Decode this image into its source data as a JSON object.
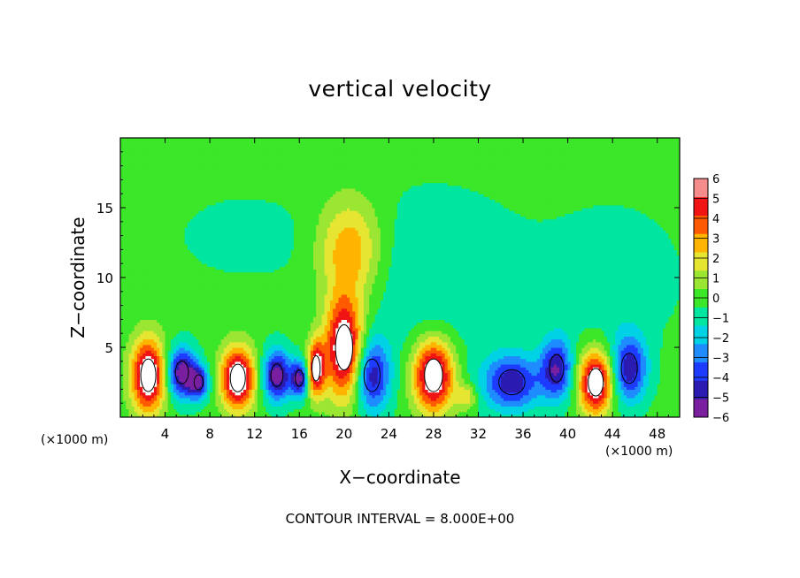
{
  "chart_data": {
    "type": "heatmap",
    "title": "vertical velocity",
    "xlabel": "X−coordinate",
    "ylabel": "Z−coordinate",
    "x_unit": "(×1000 m)",
    "footer": "CONTOUR INTERVAL = 8.000E+00",
    "xlim": [
      0,
      50
    ],
    "ylim": [
      0,
      20
    ],
    "x_ticks": [
      4,
      8,
      12,
      16,
      20,
      24,
      28,
      32,
      36,
      40,
      44,
      48
    ],
    "y_ticks": [
      5,
      10,
      15
    ],
    "colorbar": {
      "range": [
        -6,
        6
      ],
      "tick_values": [
        6,
        5,
        4,
        3,
        2,
        1,
        0,
        -1,
        -2,
        -3,
        -4,
        -5,
        -6
      ],
      "tick_labels": [
        "6",
        "5",
        "4",
        "3",
        "2",
        "1",
        "0",
        "−1",
        "−2",
        "−3",
        "−4",
        "−5",
        "−6"
      ],
      "colors": [
        "#7a1fa0",
        "#2b1bb0",
        "#1e3cff",
        "#1e8cff",
        "#00d2e6",
        "#00e6a0",
        "#3ce628",
        "#9be632",
        "#e6e632",
        "#ffb400",
        "#ff5a00",
        "#f01414",
        "#f58c8c"
      ]
    },
    "features": [
      {
        "x": 2.5,
        "z": 3.0,
        "value": 6.0,
        "rx": 1.5,
        "rz": 2.6
      },
      {
        "x": 5.5,
        "z": 3.2,
        "value": -5.0,
        "rx": 1.3,
        "rz": 1.8
      },
      {
        "x": 7.0,
        "z": 2.5,
        "value": -4.0,
        "rx": 0.9,
        "rz": 1.2
      },
      {
        "x": 10.5,
        "z": 2.8,
        "value": 6.0,
        "rx": 1.5,
        "rz": 2.2
      },
      {
        "x": 14.0,
        "z": 3.0,
        "value": -5.0,
        "rx": 1.2,
        "rz": 1.8
      },
      {
        "x": 16.0,
        "z": 2.8,
        "value": -4.5,
        "rx": 0.8,
        "rz": 1.3
      },
      {
        "x": 17.5,
        "z": 3.5,
        "value": 5.0,
        "rx": 0.8,
        "rz": 2.0
      },
      {
        "x": 20.0,
        "z": 5.0,
        "value": 6.0,
        "rx": 1.7,
        "rz": 3.6
      },
      {
        "x": 20.5,
        "z": 12.0,
        "value": 3.0,
        "rx": 2.8,
        "rz": 3.6
      },
      {
        "x": 22.5,
        "z": 3.0,
        "value": -4.0,
        "rx": 1.6,
        "rz": 2.6
      },
      {
        "x": 28.0,
        "z": 3.0,
        "value": 6.0,
        "rx": 1.8,
        "rz": 2.6
      },
      {
        "x": 31.0,
        "z": 1.5,
        "value": 2.0,
        "rx": 0.9,
        "rz": 0.9
      },
      {
        "x": 35.0,
        "z": 2.5,
        "value": -4.0,
        "rx": 2.6,
        "rz": 2.0
      },
      {
        "x": 39.0,
        "z": 3.5,
        "value": -4.0,
        "rx": 1.4,
        "rz": 2.2
      },
      {
        "x": 42.5,
        "z": 2.5,
        "value": 6.0,
        "rx": 1.5,
        "rz": 2.2
      },
      {
        "x": 45.5,
        "z": 3.5,
        "value": -4.0,
        "rx": 1.6,
        "rz": 2.4
      },
      {
        "x": 28.0,
        "z": 10.0,
        "value": -1.0,
        "rx": 8.0,
        "rz": 6.0
      },
      {
        "x": 11.0,
        "z": 13.0,
        "value": -0.6,
        "rx": 6.0,
        "rz": 3.0
      },
      {
        "x": 44.0,
        "z": 10.0,
        "value": -0.8,
        "rx": 6.0,
        "rz": 5.0
      }
    ]
  }
}
